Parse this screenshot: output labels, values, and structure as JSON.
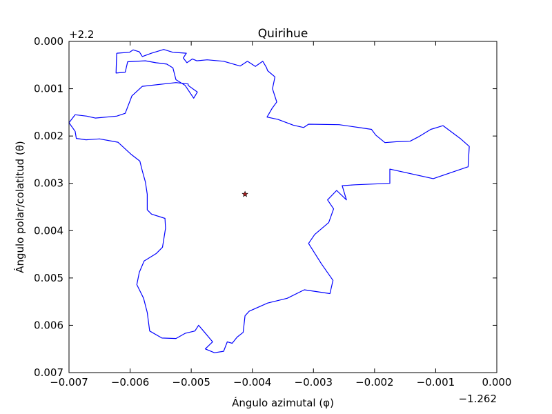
{
  "chart_data": {
    "type": "line",
    "title": "Quirihue",
    "xlabel": "Ángulo azimutal (φ)",
    "ylabel": "Ángulo polar/colatitud (θ)",
    "x_offset_label": "−1.262",
    "y_offset_label": "+2.2",
    "xlim": [
      -0.007,
      0.0
    ],
    "ylim": [
      0.007,
      0.0
    ],
    "y_inverted": true,
    "grid": false,
    "x_ticks": [
      {
        "value": -0.007,
        "label": "−0.007"
      },
      {
        "value": -0.006,
        "label": "−0.006"
      },
      {
        "value": -0.005,
        "label": "−0.005"
      },
      {
        "value": -0.004,
        "label": "−0.004"
      },
      {
        "value": -0.003,
        "label": "−0.003"
      },
      {
        "value": -0.002,
        "label": "−0.002"
      },
      {
        "value": -0.001,
        "label": "−0.001"
      },
      {
        "value": 0.0,
        "label": "0.000"
      }
    ],
    "y_ticks": [
      {
        "value": 0.0,
        "label": "0.000"
      },
      {
        "value": 0.001,
        "label": "0.001"
      },
      {
        "value": 0.002,
        "label": "0.002"
      },
      {
        "value": 0.003,
        "label": "0.003"
      },
      {
        "value": 0.004,
        "label": "0.004"
      },
      {
        "value": 0.005,
        "label": "0.005"
      },
      {
        "value": 0.006,
        "label": "0.006"
      },
      {
        "value": 0.007,
        "label": "0.007"
      }
    ],
    "series": [
      {
        "color": "#0000ff",
        "points": [
          [
            -0.00622,
            0.00025
          ],
          [
            -0.00623,
            0.00067
          ],
          [
            -0.00608,
            0.00065
          ],
          [
            -0.00604,
            0.00043
          ],
          [
            -0.00575,
            0.00041
          ],
          [
            -0.00558,
            0.00045
          ],
          [
            -0.0054,
            0.00048
          ],
          [
            -0.0053,
            0.00056
          ],
          [
            -0.00525,
            0.00081
          ],
          [
            -0.0051,
            0.00093
          ],
          [
            -0.00496,
            0.0012
          ],
          [
            -0.0049,
            0.00107
          ],
          [
            -0.00505,
            0.00093
          ],
          [
            -0.00505,
            0.0009
          ],
          [
            -0.00525,
            0.00087
          ],
          [
            -0.0058,
            0.00095
          ],
          [
            -0.00597,
            0.00115
          ],
          [
            -0.00608,
            0.00152
          ],
          [
            -0.00622,
            0.00158
          ],
          [
            -0.00657,
            0.00162
          ],
          [
            -0.00671,
            0.00158
          ],
          [
            -0.0069,
            0.00155
          ],
          [
            -0.007,
            0.00172
          ],
          [
            -0.0069,
            0.0019
          ],
          [
            -0.00688,
            0.00205
          ],
          [
            -0.00672,
            0.00208
          ],
          [
            -0.0065,
            0.00206
          ],
          [
            -0.0062,
            0.00213
          ],
          [
            -0.00598,
            0.00239
          ],
          [
            -0.00584,
            0.00253
          ],
          [
            -0.0058,
            0.00274
          ],
          [
            -0.00575,
            0.00297
          ],
          [
            -0.00572,
            0.00323
          ],
          [
            -0.00572,
            0.00356
          ],
          [
            -0.00565,
            0.00365
          ],
          [
            -0.00543,
            0.00374
          ],
          [
            -0.00542,
            0.00395
          ],
          [
            -0.00547,
            0.00435
          ],
          [
            -0.00557,
            0.00448
          ],
          [
            -0.00577,
            0.00464
          ],
          [
            -0.00585,
            0.00488
          ],
          [
            -0.00589,
            0.00514
          ],
          [
            -0.00578,
            0.00543
          ],
          [
            -0.00572,
            0.00573
          ],
          [
            -0.00568,
            0.00612
          ],
          [
            -0.00548,
            0.00627
          ],
          [
            -0.00525,
            0.00628
          ],
          [
            -0.0051,
            0.00617
          ],
          [
            -0.00494,
            0.00612
          ],
          [
            -0.00488,
            0.006
          ],
          [
            -0.00478,
            0.00615
          ],
          [
            -0.00465,
            0.00635
          ],
          [
            -0.00477,
            0.0065
          ],
          [
            -0.00462,
            0.00658
          ],
          [
            -0.00447,
            0.00655
          ],
          [
            -0.00441,
            0.00635
          ],
          [
            -0.00433,
            0.00638
          ],
          [
            -0.00425,
            0.00625
          ],
          [
            -0.00415,
            0.00615
          ],
          [
            -0.00412,
            0.0058
          ],
          [
            -0.00405,
            0.0057
          ],
          [
            -0.00375,
            0.00553
          ],
          [
            -0.00343,
            0.00543
          ],
          [
            -0.00315,
            0.00525
          ],
          [
            -0.00273,
            0.00533
          ],
          [
            -0.00268,
            0.00505
          ],
          [
            -0.00287,
            0.0047
          ],
          [
            -0.00308,
            0.00427
          ],
          [
            -0.00298,
            0.00408
          ],
          [
            -0.00275,
            0.00383
          ],
          [
            -0.00267,
            0.00354
          ],
          [
            -0.00277,
            0.00335
          ],
          [
            -0.00262,
            0.00315
          ],
          [
            -0.00246,
            0.00335
          ],
          [
            -0.00253,
            0.00305
          ],
          [
            -0.00232,
            0.00303
          ],
          [
            -0.00175,
            0.003
          ],
          [
            -0.00175,
            0.0027
          ],
          [
            -0.00104,
            0.0029
          ],
          [
            -0.00047,
            0.00265
          ],
          [
            -0.00045,
            0.00222
          ],
          [
            -0.0006,
            0.00205
          ],
          [
            -0.00088,
            0.00178
          ],
          [
            -0.00108,
            0.00186
          ],
          [
            -0.00127,
            0.00201
          ],
          [
            -0.00142,
            0.00211
          ],
          [
            -0.00164,
            0.00212
          ],
          [
            -0.00183,
            0.00214
          ],
          [
            -0.00198,
            0.00198
          ],
          [
            -0.00205,
            0.00186
          ],
          [
            -0.0022,
            0.00183
          ],
          [
            -0.00258,
            0.00176
          ],
          [
            -0.00308,
            0.00175
          ],
          [
            -0.00316,
            0.00182
          ],
          [
            -0.00333,
            0.00177
          ],
          [
            -0.00358,
            0.00165
          ],
          [
            -0.00376,
            0.0016
          ],
          [
            -0.00368,
            0.00142
          ],
          [
            -0.0036,
            0.00128
          ],
          [
            -0.00367,
            0.001
          ],
          [
            -0.00363,
            0.00075
          ],
          [
            -0.00375,
            0.00062
          ],
          [
            -0.00377,
            0.00055
          ],
          [
            -0.00383,
            0.00042
          ],
          [
            -0.00395,
            0.00053
          ],
          [
            -0.00408,
            0.00042
          ],
          [
            -0.0042,
            0.00052
          ],
          [
            -0.00447,
            0.00042
          ],
          [
            -0.00474,
            0.00039
          ],
          [
            -0.00491,
            0.00041
          ],
          [
            -0.00498,
            0.00037
          ],
          [
            -0.00507,
            0.00045
          ],
          [
            -0.00513,
            0.00035
          ],
          [
            -0.00508,
            0.00025
          ],
          [
            -0.0053,
            0.00023
          ],
          [
            -0.00545,
            0.00017
          ],
          [
            -0.00565,
            0.00025
          ],
          [
            -0.0058,
            0.00032
          ],
          [
            -0.00585,
            0.00022
          ],
          [
            -0.00595,
            0.00018
          ],
          [
            -0.00601,
            0.00023
          ],
          [
            -0.00622,
            0.00025
          ]
        ]
      }
    ],
    "markers": [
      {
        "x": -0.00412,
        "y": 0.00323,
        "shape": "star",
        "color": "#b22222"
      }
    ]
  }
}
